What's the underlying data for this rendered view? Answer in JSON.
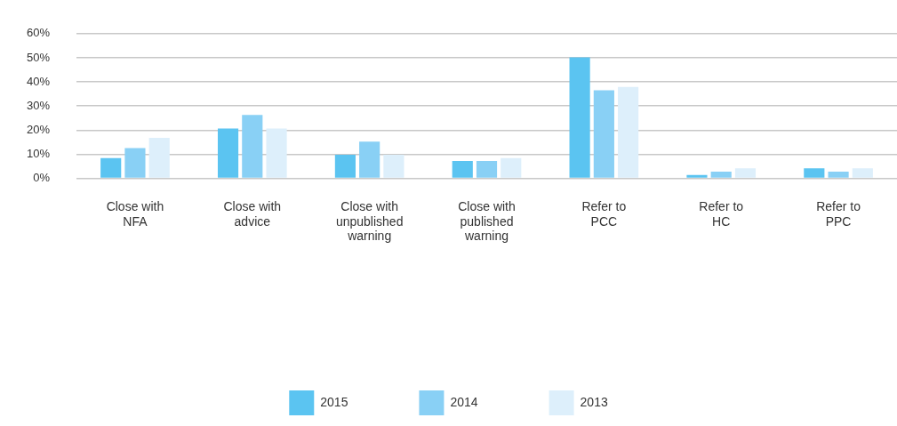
{
  "chart_data": {
    "type": "bar",
    "categories": [
      "Close with\nNFA",
      "Close with\nadvice",
      "Close with\nunpublished\nwarning",
      "Close with\npublished\nwarning",
      "Refer to\nPCC",
      "Refer to\nHC",
      "Refer to\nPPC"
    ],
    "series": [
      {
        "name": "2015",
        "color": "#5bc4f1",
        "values": [
          8.4,
          20.7,
          9.8,
          7.2,
          50.2,
          1.4,
          4.2
        ]
      },
      {
        "name": "2014",
        "color": "#89d0f5",
        "values": [
          12.6,
          26.3,
          15.2,
          7.2,
          36.5,
          2.8,
          2.8
        ]
      },
      {
        "name": "2013",
        "color": "#ddeffb",
        "values": [
          16.8,
          20.7,
          9.8,
          8.4,
          37.9,
          4.2,
          4.2
        ]
      }
    ],
    "ylim": [
      0,
      60
    ],
    "yticks": [
      {
        "value": 0,
        "label": "0%"
      },
      {
        "value": 10,
        "label": "10%"
      },
      {
        "value": 20,
        "label": "20%"
      },
      {
        "value": 30,
        "label": "30%"
      },
      {
        "value": 40,
        "label": "40%"
      },
      {
        "value": 50,
        "label": "50%"
      },
      {
        "value": 60,
        "label": "60%"
      }
    ],
    "grid": "y",
    "legend": "bottom"
  }
}
